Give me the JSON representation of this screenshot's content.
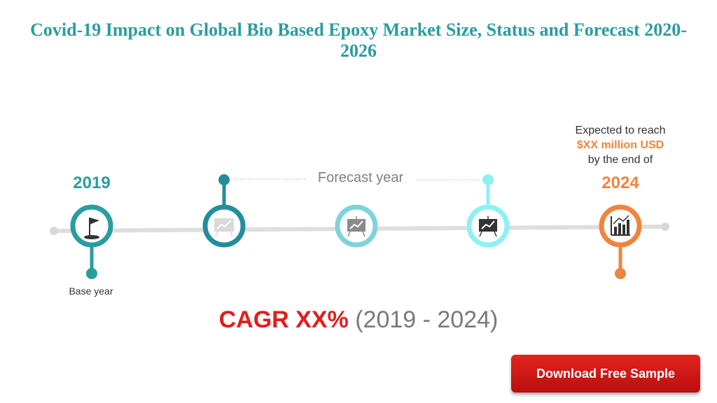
{
  "header": {
    "title": "Covid-19 Impact on Global Bio Based Epoxy Market Size, Status and Forecast 2020-2026"
  },
  "timeline": {
    "start_year": "2019",
    "end_year": "2024",
    "forecast_label": "Forecast year",
    "base_label": "Base year",
    "nodes": [
      {
        "icon": "flag-icon",
        "color": "#2a9d9f"
      },
      {
        "icon": "presentation-chart-icon",
        "color": "#238d9e"
      },
      {
        "icon": "presentation-chart-icon",
        "color": "#7fd3d8"
      },
      {
        "icon": "presentation-chart-icon",
        "color": "#8ef0f5"
      },
      {
        "icon": "bar-chart-icon",
        "color": "#f0843c"
      }
    ]
  },
  "expectation": {
    "line1": "Expected to reach",
    "value": "$XX million USD",
    "line3": "by the end of"
  },
  "cagr": {
    "value": "CAGR XX%",
    "range": "(2019 - 2024)"
  },
  "cta": {
    "download_label": "Download Free Sample"
  },
  "colors": {
    "teal": "#2a9d9f",
    "orange": "#f0843c",
    "red": "#e01e1e",
    "button": "#d01a17"
  }
}
